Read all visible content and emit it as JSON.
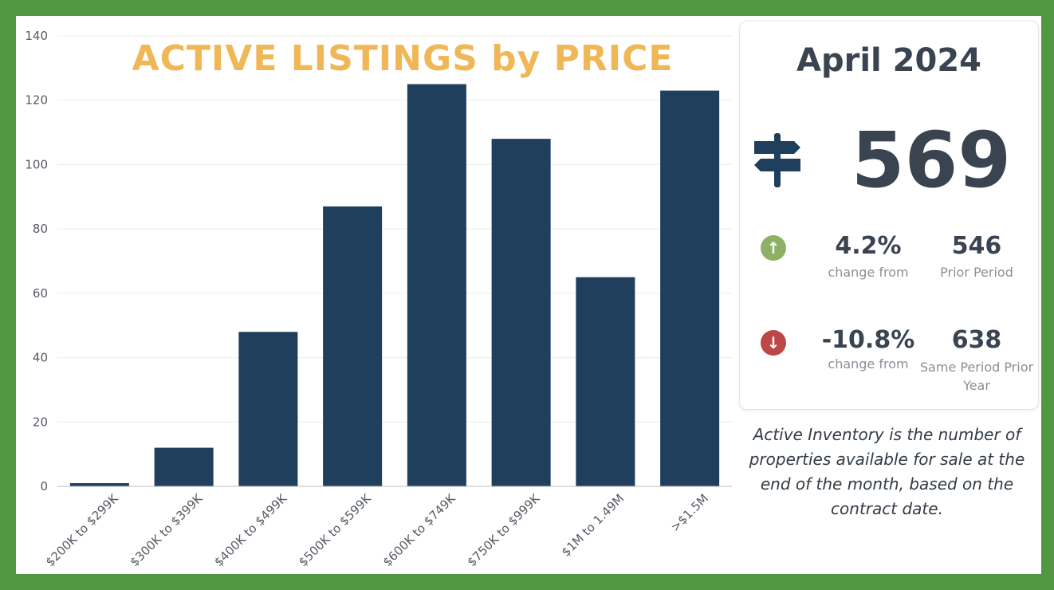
{
  "chart_data": {
    "type": "bar",
    "title": "ACTIVE LISTINGS by PRICE",
    "categories": [
      "$200K to $299K",
      "$300K to $399K",
      "$400K to $499K",
      "$500K to $599K",
      "$600K to $749K",
      "$750K to $999K",
      "$1M to 1.49M",
      ">$1.5M"
    ],
    "values": [
      1,
      12,
      48,
      87,
      125,
      108,
      65,
      123
    ],
    "ylim": [
      0,
      140
    ],
    "yticks": [
      0,
      20,
      40,
      60,
      80,
      100,
      120,
      140
    ],
    "xlabel": "",
    "ylabel": "",
    "grid": true,
    "bar_color": "#1f3f5c",
    "title_color": "#f0b757"
  },
  "summary": {
    "period": "April 2024",
    "total": "569",
    "icon": "signpost-icon",
    "prior_period": {
      "change": "4.2%",
      "change_label": "change from",
      "direction": "up",
      "value": "546",
      "label": "Prior Period"
    },
    "prior_year": {
      "change": "-10.8%",
      "change_label": "change from",
      "direction": "down",
      "value": "638",
      "label": "Same Period Prior Year"
    }
  },
  "footnote": "Active Inventory is the number of properties available for sale at the end of the month, based on the contract date.",
  "colors": {
    "frame": "#529641",
    "up": "#8fb067",
    "down": "#bd4646",
    "text": "#3a4350"
  }
}
